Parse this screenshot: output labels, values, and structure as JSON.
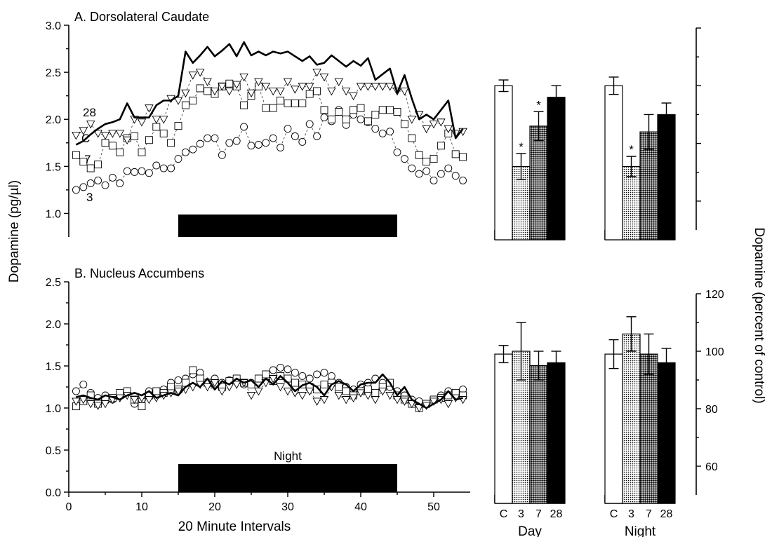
{
  "figure": {
    "y_axis_title_left": "Dopamine (pg/µl)",
    "y_axis_title_right": "Dopamine (percent of control)",
    "x_axis_title": "20 Minute Intervals"
  },
  "chart_data": [
    {
      "type": "line",
      "panel": "A",
      "title": "A. Dorsolateral Caudate",
      "xlabel": "20 Minute Intervals",
      "ylabel": "Dopamine (pg/µl)",
      "xlim": [
        0,
        55
      ],
      "ylim": [
        0.75,
        3.0
      ],
      "yticks": [
        1.0,
        1.5,
        2.0,
        2.5,
        3.0
      ],
      "ytick_labels": [
        "1.0",
        "1.5",
        "2.0",
        "2.5",
        "3.0"
      ],
      "xticks": [
        0,
        10,
        20,
        30,
        40,
        50
      ],
      "xtick_labels": [
        "0",
        "10",
        "20",
        "30",
        "40",
        "50"
      ],
      "night_bar": {
        "start": 15,
        "end": 45,
        "label": ""
      },
      "series_labels": [
        "28",
        "C",
        "7",
        "3"
      ],
      "series": [
        {
          "name": "C",
          "marker": "line",
          "x": [
            1,
            2,
            3,
            4,
            5,
            6,
            7,
            8,
            9,
            10,
            11,
            12,
            13,
            14,
            15,
            16,
            17,
            18,
            19,
            20,
            21,
            22,
            23,
            24,
            25,
            26,
            27,
            28,
            29,
            30,
            31,
            32,
            33,
            34,
            35,
            36,
            37,
            38,
            39,
            40,
            41,
            42,
            43,
            44,
            45,
            46,
            47,
            48,
            49,
            50,
            51,
            52,
            53,
            54
          ],
          "values": [
            1.73,
            1.77,
            1.84,
            1.9,
            1.95,
            1.97,
            2.0,
            2.17,
            2.02,
            2.02,
            2.02,
            2.15,
            2.2,
            2.2,
            2.25,
            2.72,
            2.6,
            2.68,
            2.77,
            2.67,
            2.73,
            2.8,
            2.67,
            2.82,
            2.68,
            2.72,
            2.68,
            2.72,
            2.7,
            2.72,
            2.67,
            2.62,
            2.67,
            2.58,
            2.6,
            2.68,
            2.62,
            2.56,
            2.62,
            2.57,
            2.65,
            2.42,
            2.48,
            2.54,
            2.28,
            2.47,
            2.22,
            2.0,
            2.05,
            2.0,
            2.1,
            2.2,
            1.8,
            1.9
          ]
        },
        {
          "name": "28",
          "marker": "triangle-down",
          "x": [
            1,
            2,
            3,
            4,
            5,
            6,
            7,
            8,
            9,
            10,
            11,
            12,
            13,
            14,
            15,
            16,
            17,
            18,
            19,
            20,
            21,
            22,
            23,
            24,
            25,
            26,
            27,
            28,
            29,
            30,
            31,
            32,
            33,
            34,
            35,
            36,
            37,
            38,
            39,
            40,
            41,
            42,
            43,
            44,
            45,
            46,
            47,
            48,
            49,
            50,
            51,
            52,
            53,
            54
          ],
          "values": [
            1.83,
            1.88,
            1.95,
            1.85,
            1.83,
            1.85,
            1.85,
            1.78,
            2.0,
            1.97,
            2.12,
            2.0,
            2.0,
            2.22,
            2.2,
            2.28,
            2.47,
            2.5,
            2.4,
            2.3,
            2.35,
            2.3,
            2.37,
            2.45,
            2.28,
            2.4,
            2.35,
            2.3,
            2.3,
            2.4,
            2.32,
            2.35,
            2.35,
            2.5,
            2.45,
            2.3,
            2.4,
            2.3,
            2.25,
            2.35,
            2.35,
            2.35,
            2.35,
            2.35,
            2.3,
            2.3,
            2.0,
            2.05,
            1.9,
            1.95,
            1.97,
            1.9,
            1.85,
            1.87
          ]
        },
        {
          "name": "7",
          "marker": "square",
          "x": [
            1,
            2,
            3,
            4,
            5,
            6,
            7,
            8,
            9,
            10,
            11,
            12,
            13,
            14,
            15,
            16,
            17,
            18,
            19,
            20,
            21,
            22,
            23,
            24,
            25,
            26,
            27,
            28,
            29,
            30,
            31,
            32,
            33,
            34,
            35,
            36,
            37,
            38,
            39,
            40,
            41,
            42,
            43,
            44,
            45,
            46,
            47,
            48,
            49,
            50,
            51,
            52,
            53,
            54
          ],
          "values": [
            1.62,
            1.55,
            1.48,
            1.52,
            1.75,
            1.72,
            1.65,
            1.8,
            1.82,
            1.65,
            1.78,
            1.92,
            1.85,
            1.75,
            1.93,
            2.15,
            2.2,
            2.33,
            2.3,
            2.27,
            2.35,
            2.38,
            2.35,
            2.15,
            2.25,
            2.35,
            2.12,
            2.12,
            2.2,
            2.17,
            2.17,
            2.17,
            2.27,
            2.3,
            2.1,
            2.0,
            2.08,
            2.0,
            2.1,
            2.12,
            1.98,
            2.05,
            2.1,
            2.1,
            2.08,
            1.95,
            1.8,
            1.62,
            1.55,
            1.58,
            1.72,
            1.85,
            1.63,
            1.6
          ]
        },
        {
          "name": "3",
          "marker": "circle",
          "x": [
            1,
            2,
            3,
            4,
            5,
            6,
            7,
            8,
            9,
            10,
            11,
            12,
            13,
            14,
            15,
            16,
            17,
            18,
            19,
            20,
            21,
            22,
            23,
            24,
            25,
            26,
            27,
            28,
            29,
            30,
            31,
            32,
            33,
            34,
            35,
            36,
            37,
            38,
            39,
            40,
            41,
            42,
            43,
            44,
            45,
            46,
            47,
            48,
            49,
            50,
            51,
            52,
            53,
            54
          ],
          "values": [
            1.25,
            1.28,
            1.32,
            1.35,
            1.3,
            1.38,
            1.32,
            1.45,
            1.44,
            1.45,
            1.43,
            1.51,
            1.48,
            1.48,
            1.58,
            1.65,
            1.68,
            1.74,
            1.8,
            1.8,
            1.62,
            1.75,
            1.77,
            1.92,
            1.72,
            1.73,
            1.75,
            1.8,
            1.7,
            1.9,
            1.82,
            1.76,
            1.95,
            1.82,
            2.02,
            1.98,
            2.1,
            1.94,
            2.05,
            2.0,
            1.97,
            1.9,
            1.85,
            1.87,
            1.65,
            1.58,
            1.48,
            1.42,
            1.45,
            1.35,
            1.42,
            1.48,
            1.4,
            1.35
          ]
        }
      ]
    },
    {
      "type": "line",
      "panel": "B",
      "title": "B. Nucleus Accumbens",
      "xlabel": "20 Minute Intervals",
      "ylabel": "Dopamine (pg/µl)",
      "xlim": [
        0,
        55
      ],
      "ylim": [
        0.0,
        2.5
      ],
      "yticks": [
        0.0,
        0.5,
        1.0,
        1.5,
        2.0,
        2.5
      ],
      "ytick_labels": [
        "0.0",
        "0.5",
        "1.0",
        "1.5",
        "2.0",
        "2.5"
      ],
      "xticks": [
        0,
        10,
        20,
        30,
        40,
        50
      ],
      "xtick_labels": [
        "0",
        "10",
        "20",
        "30",
        "40",
        "50"
      ],
      "night_bar": {
        "start": 15,
        "end": 45,
        "label": "Night"
      },
      "series": [
        {
          "name": "C",
          "marker": "line",
          "x": [
            1,
            2,
            3,
            4,
            5,
            6,
            7,
            8,
            9,
            10,
            11,
            12,
            13,
            14,
            15,
            16,
            17,
            18,
            19,
            20,
            21,
            22,
            23,
            24,
            25,
            26,
            27,
            28,
            29,
            30,
            31,
            32,
            33,
            34,
            35,
            36,
            37,
            38,
            39,
            40,
            41,
            42,
            43,
            44,
            45,
            46,
            47,
            48,
            49,
            50,
            51,
            52,
            53,
            54
          ],
          "values": [
            1.13,
            1.15,
            1.12,
            1.1,
            1.15,
            1.13,
            1.1,
            1.15,
            1.18,
            1.15,
            1.2,
            1.12,
            1.15,
            1.18,
            1.15,
            1.25,
            1.3,
            1.25,
            1.35,
            1.22,
            1.32,
            1.28,
            1.35,
            1.3,
            1.33,
            1.25,
            1.35,
            1.28,
            1.38,
            1.3,
            1.2,
            1.27,
            1.3,
            1.25,
            1.15,
            1.28,
            1.32,
            1.28,
            1.2,
            1.28,
            1.3,
            1.3,
            1.4,
            1.3,
            1.15,
            1.25,
            1.1,
            1.05,
            1.0,
            1.05,
            1.1,
            1.2,
            1.1,
            1.12
          ]
        },
        {
          "name": "28",
          "marker": "triangle-down",
          "x": [
            1,
            2,
            3,
            4,
            5,
            6,
            7,
            8,
            9,
            10,
            11,
            12,
            13,
            14,
            15,
            16,
            17,
            18,
            19,
            20,
            21,
            22,
            23,
            24,
            25,
            26,
            27,
            28,
            29,
            30,
            31,
            32,
            33,
            34,
            35,
            36,
            37,
            38,
            39,
            40,
            41,
            42,
            43,
            44,
            45,
            46,
            47,
            48,
            49,
            50,
            51,
            52,
            53,
            54
          ],
          "values": [
            1.08,
            1.1,
            1.05,
            1.03,
            1.05,
            1.1,
            1.12,
            1.15,
            1.1,
            1.12,
            1.1,
            1.12,
            1.15,
            1.18,
            1.2,
            1.22,
            1.25,
            1.28,
            1.25,
            1.3,
            1.2,
            1.25,
            1.28,
            1.3,
            1.15,
            1.2,
            1.3,
            1.35,
            1.25,
            1.2,
            1.18,
            1.15,
            1.2,
            1.08,
            1.1,
            1.25,
            1.15,
            1.1,
            1.12,
            1.18,
            1.15,
            1.1,
            1.2,
            1.15,
            1.1,
            1.08,
            1.05,
            1.0,
            1.03,
            1.08,
            1.1,
            1.05,
            1.12,
            1.1
          ]
        },
        {
          "name": "7",
          "marker": "square",
          "x": [
            1,
            2,
            3,
            4,
            5,
            6,
            7,
            8,
            9,
            10,
            11,
            12,
            13,
            14,
            15,
            16,
            17,
            18,
            19,
            20,
            21,
            22,
            23,
            24,
            25,
            26,
            27,
            28,
            29,
            30,
            31,
            32,
            33,
            34,
            35,
            36,
            37,
            38,
            39,
            40,
            41,
            42,
            43,
            44,
            45,
            46,
            47,
            48,
            49,
            50,
            51,
            52,
            53,
            54
          ],
          "values": [
            1.02,
            1.08,
            1.15,
            1.05,
            1.1,
            1.12,
            1.18,
            1.2,
            1.1,
            1.02,
            1.15,
            1.2,
            1.18,
            1.25,
            1.22,
            1.3,
            1.45,
            1.35,
            1.3,
            1.28,
            1.25,
            1.32,
            1.35,
            1.3,
            1.28,
            1.35,
            1.4,
            1.32,
            1.38,
            1.35,
            1.3,
            1.28,
            1.25,
            1.22,
            1.28,
            1.3,
            1.25,
            1.2,
            1.15,
            1.2,
            1.22,
            1.18,
            1.25,
            1.3,
            1.15,
            1.1,
            1.05,
            1.0,
            1.05,
            1.1,
            1.12,
            1.15,
            1.18,
            1.15
          ]
        },
        {
          "name": "3",
          "marker": "circle",
          "x": [
            1,
            2,
            3,
            4,
            5,
            6,
            7,
            8,
            9,
            10,
            11,
            12,
            13,
            14,
            15,
            16,
            17,
            18,
            19,
            20,
            21,
            22,
            23,
            24,
            25,
            26,
            27,
            28,
            29,
            30,
            31,
            32,
            33,
            34,
            35,
            36,
            37,
            38,
            39,
            40,
            41,
            42,
            43,
            44,
            45,
            46,
            47,
            48,
            49,
            50,
            51,
            52,
            53,
            54
          ],
          "values": [
            1.2,
            1.28,
            1.18,
            1.12,
            1.15,
            1.1,
            1.15,
            1.2,
            1.05,
            1.1,
            1.2,
            1.15,
            1.22,
            1.3,
            1.33,
            1.35,
            1.4,
            1.42,
            1.3,
            1.35,
            1.3,
            1.33,
            1.35,
            1.28,
            1.3,
            1.35,
            1.4,
            1.45,
            1.48,
            1.46,
            1.42,
            1.38,
            1.35,
            1.4,
            1.42,
            1.38,
            1.3,
            1.25,
            1.22,
            1.28,
            1.3,
            1.35,
            1.3,
            1.25,
            1.2,
            1.15,
            1.1,
            1.08,
            1.05,
            1.1,
            1.15,
            1.2,
            1.15,
            1.22
          ]
        }
      ]
    },
    {
      "type": "bar",
      "panel": "A-Day",
      "xlabel": "Day",
      "categories": [
        "C",
        "3",
        "7",
        "28"
      ],
      "values": [
        100,
        72,
        86,
        96
      ],
      "errors": [
        2,
        4.5,
        5,
        4
      ],
      "significant": [
        false,
        true,
        true,
        false
      ],
      "significance_marker": "*",
      "fills": [
        "white",
        "dots-light",
        "dots-dark",
        "black"
      ],
      "ylim": [
        50,
        120
      ]
    },
    {
      "type": "bar",
      "panel": "A-Night",
      "xlabel": "Night",
      "categories": [
        "C",
        "3",
        "7",
        "28"
      ],
      "values": [
        100,
        72,
        84,
        90
      ],
      "errors": [
        3,
        3.5,
        6,
        4
      ],
      "significant": [
        false,
        true,
        false,
        false
      ],
      "significance_marker": "*",
      "fills": [
        "white",
        "dots-light",
        "dots-dark",
        "black"
      ],
      "ylim": [
        50,
        120
      ]
    },
    {
      "type": "bar",
      "panel": "B-Day",
      "xlabel": "Day",
      "categories": [
        "C",
        "3",
        "7",
        "28"
      ],
      "values": [
        99,
        100,
        95,
        96
      ],
      "errors": [
        3,
        10,
        5,
        4
      ],
      "significant": [
        false,
        false,
        false,
        false
      ],
      "fills": [
        "white",
        "dots-light",
        "dots-dark",
        "black"
      ],
      "ylim": [
        50,
        120
      ]
    },
    {
      "type": "bar",
      "panel": "B-Night",
      "xlabel": "Night",
      "categories": [
        "C",
        "3",
        "7",
        "28"
      ],
      "values": [
        99,
        106,
        99,
        96
      ],
      "errors": [
        5,
        6,
        7,
        5
      ],
      "significant": [
        false,
        false,
        false,
        false
      ],
      "fills": [
        "white",
        "dots-light",
        "dots-dark",
        "black"
      ],
      "ylim": [
        50,
        120
      ],
      "right_axis": {
        "ticks": [
          60,
          80,
          100,
          120
        ],
        "tick_labels": [
          "60",
          "80",
          "100",
          "120"
        ]
      }
    }
  ]
}
